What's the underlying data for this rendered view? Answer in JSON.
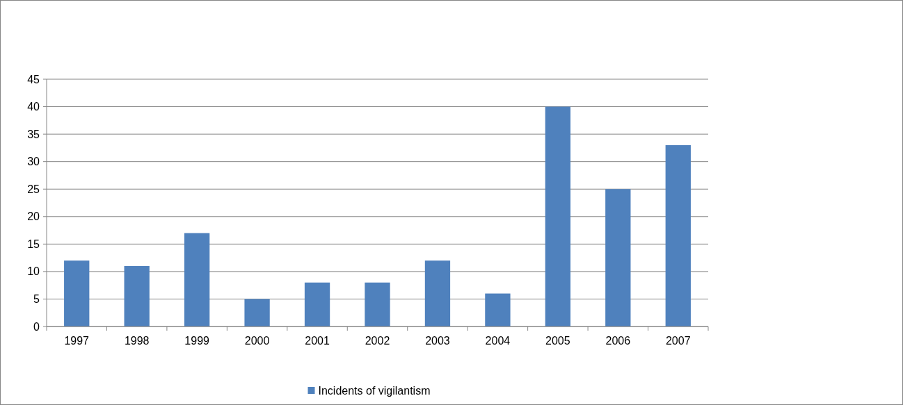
{
  "chart_data": {
    "type": "bar",
    "categories": [
      "1997",
      "1998",
      "1999",
      "2000",
      "2001",
      "2002",
      "2003",
      "2004",
      "2005",
      "2006",
      "2007"
    ],
    "series": [
      {
        "name": "Incidents of vigilantism",
        "color": "#4f81bd",
        "values": [
          12,
          11,
          17,
          5,
          8,
          8,
          12,
          6,
          40,
          25,
          33
        ]
      }
    ],
    "ylim": [
      0,
      45
    ],
    "yticks": [
      0,
      5,
      10,
      15,
      20,
      25,
      30,
      35,
      40,
      45
    ],
    "grid": "y",
    "legend": "bottom"
  }
}
